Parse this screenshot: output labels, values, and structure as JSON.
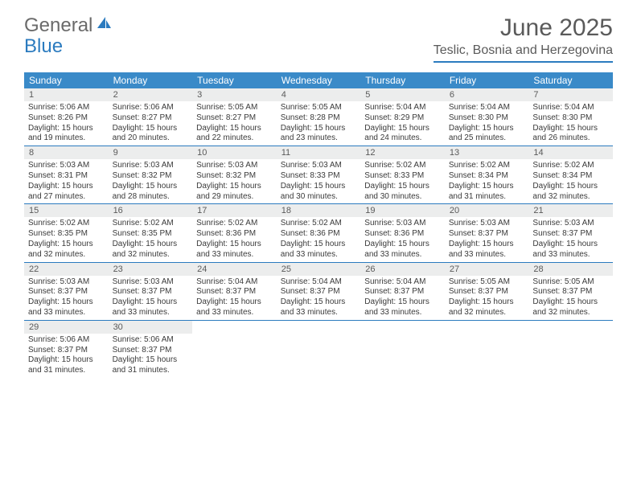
{
  "logo": {
    "general": "General",
    "blue": "Blue"
  },
  "title": "June 2025",
  "location": "Teslic, Bosnia and Herzegovina",
  "colors": {
    "header_bg": "#3a8ac8",
    "divider": "#2b7bbf",
    "daynum_bg": "#eceded",
    "text": "#5a5a5a"
  },
  "weekdays": [
    "Sunday",
    "Monday",
    "Tuesday",
    "Wednesday",
    "Thursday",
    "Friday",
    "Saturday"
  ],
  "weeks": [
    [
      {
        "n": "1",
        "sr": "5:06 AM",
        "ss": "8:26 PM",
        "dh": "15",
        "dm": "19"
      },
      {
        "n": "2",
        "sr": "5:06 AM",
        "ss": "8:27 PM",
        "dh": "15",
        "dm": "20"
      },
      {
        "n": "3",
        "sr": "5:05 AM",
        "ss": "8:27 PM",
        "dh": "15",
        "dm": "22"
      },
      {
        "n": "4",
        "sr": "5:05 AM",
        "ss": "8:28 PM",
        "dh": "15",
        "dm": "23"
      },
      {
        "n": "5",
        "sr": "5:04 AM",
        "ss": "8:29 PM",
        "dh": "15",
        "dm": "24"
      },
      {
        "n": "6",
        "sr": "5:04 AM",
        "ss": "8:30 PM",
        "dh": "15",
        "dm": "25"
      },
      {
        "n": "7",
        "sr": "5:04 AM",
        "ss": "8:30 PM",
        "dh": "15",
        "dm": "26"
      }
    ],
    [
      {
        "n": "8",
        "sr": "5:03 AM",
        "ss": "8:31 PM",
        "dh": "15",
        "dm": "27"
      },
      {
        "n": "9",
        "sr": "5:03 AM",
        "ss": "8:32 PM",
        "dh": "15",
        "dm": "28"
      },
      {
        "n": "10",
        "sr": "5:03 AM",
        "ss": "8:32 PM",
        "dh": "15",
        "dm": "29"
      },
      {
        "n": "11",
        "sr": "5:03 AM",
        "ss": "8:33 PM",
        "dh": "15",
        "dm": "30"
      },
      {
        "n": "12",
        "sr": "5:02 AM",
        "ss": "8:33 PM",
        "dh": "15",
        "dm": "30"
      },
      {
        "n": "13",
        "sr": "5:02 AM",
        "ss": "8:34 PM",
        "dh": "15",
        "dm": "31"
      },
      {
        "n": "14",
        "sr": "5:02 AM",
        "ss": "8:34 PM",
        "dh": "15",
        "dm": "32"
      }
    ],
    [
      {
        "n": "15",
        "sr": "5:02 AM",
        "ss": "8:35 PM",
        "dh": "15",
        "dm": "32"
      },
      {
        "n": "16",
        "sr": "5:02 AM",
        "ss": "8:35 PM",
        "dh": "15",
        "dm": "32"
      },
      {
        "n": "17",
        "sr": "5:02 AM",
        "ss": "8:36 PM",
        "dh": "15",
        "dm": "33"
      },
      {
        "n": "18",
        "sr": "5:02 AM",
        "ss": "8:36 PM",
        "dh": "15",
        "dm": "33"
      },
      {
        "n": "19",
        "sr": "5:03 AM",
        "ss": "8:36 PM",
        "dh": "15",
        "dm": "33"
      },
      {
        "n": "20",
        "sr": "5:03 AM",
        "ss": "8:37 PM",
        "dh": "15",
        "dm": "33"
      },
      {
        "n": "21",
        "sr": "5:03 AM",
        "ss": "8:37 PM",
        "dh": "15",
        "dm": "33"
      }
    ],
    [
      {
        "n": "22",
        "sr": "5:03 AM",
        "ss": "8:37 PM",
        "dh": "15",
        "dm": "33"
      },
      {
        "n": "23",
        "sr": "5:03 AM",
        "ss": "8:37 PM",
        "dh": "15",
        "dm": "33"
      },
      {
        "n": "24",
        "sr": "5:04 AM",
        "ss": "8:37 PM",
        "dh": "15",
        "dm": "33"
      },
      {
        "n": "25",
        "sr": "5:04 AM",
        "ss": "8:37 PM",
        "dh": "15",
        "dm": "33"
      },
      {
        "n": "26",
        "sr": "5:04 AM",
        "ss": "8:37 PM",
        "dh": "15",
        "dm": "33"
      },
      {
        "n": "27",
        "sr": "5:05 AM",
        "ss": "8:37 PM",
        "dh": "15",
        "dm": "32"
      },
      {
        "n": "28",
        "sr": "5:05 AM",
        "ss": "8:37 PM",
        "dh": "15",
        "dm": "32"
      }
    ],
    [
      {
        "n": "29",
        "sr": "5:06 AM",
        "ss": "8:37 PM",
        "dh": "15",
        "dm": "31"
      },
      {
        "n": "30",
        "sr": "5:06 AM",
        "ss": "8:37 PM",
        "dh": "15",
        "dm": "31"
      },
      null,
      null,
      null,
      null,
      null
    ]
  ],
  "labels": {
    "sunrise": "Sunrise:",
    "sunset": "Sunset:",
    "daylight": "Daylight:",
    "hours": "hours",
    "and": "and",
    "minutes": "minutes."
  }
}
